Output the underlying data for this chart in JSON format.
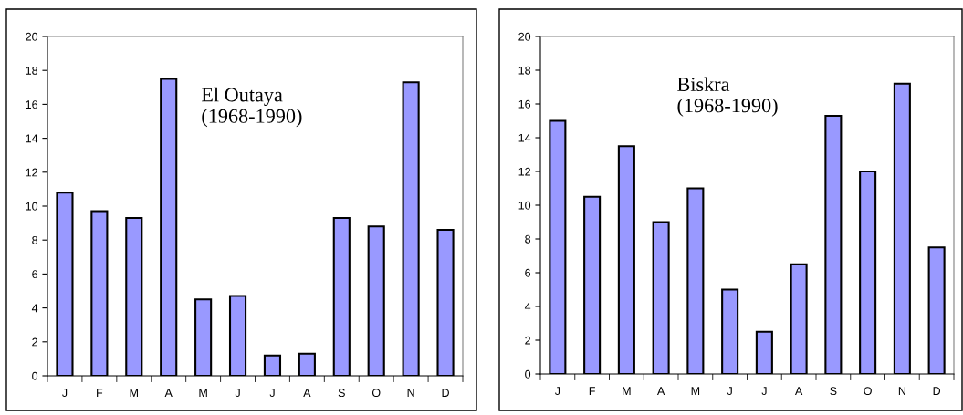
{
  "chart_data": [
    {
      "type": "bar",
      "categories": [
        "J",
        "F",
        "M",
        "A",
        "M",
        "J",
        "J",
        "A",
        "S",
        "O",
        "N",
        "D"
      ],
      "values": [
        10.8,
        9.7,
        9.3,
        17.5,
        4.5,
        4.7,
        1.2,
        1.3,
        9.3,
        8.8,
        17.3,
        8.6
      ],
      "color": "#9999ff",
      "ylim": [
        0,
        20
      ],
      "yticks": [
        0,
        2,
        4,
        6,
        8,
        10,
        12,
        14,
        16,
        18,
        20
      ],
      "grid": false,
      "legend": false,
      "annotations": [
        "El Outaya\n(1968-1990)"
      ]
    },
    {
      "type": "bar",
      "categories": [
        "J",
        "F",
        "M",
        "A",
        "M",
        "J",
        "J",
        "A",
        "S",
        "O",
        "N",
        "D"
      ],
      "values": [
        15,
        10.5,
        13.5,
        9,
        11,
        5,
        2.5,
        6.5,
        15.3,
        12,
        17.2,
        7.5
      ],
      "color": "#9999ff",
      "ylim": [
        0,
        20
      ],
      "yticks": [
        0,
        2,
        4,
        6,
        8,
        10,
        12,
        14,
        16,
        18,
        20
      ],
      "grid": false,
      "legend": false,
      "annotations": [
        "Biskra\n(1968-1990)"
      ]
    }
  ]
}
